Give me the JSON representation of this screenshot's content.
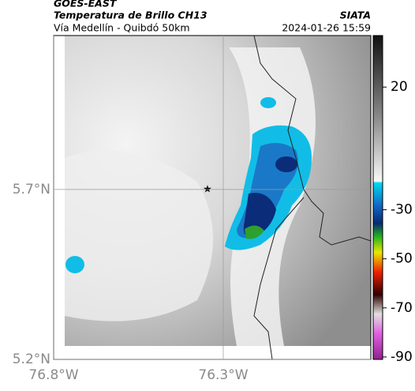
{
  "header": {
    "title": "GOES-EAST",
    "subtitle": "Temperatura de Brillo CH13",
    "location": "Vía Medellín - Quibdó 50km",
    "source": "SIATA",
    "datetime": "2024-01-26 15:59"
  },
  "map": {
    "xlim": [
      -76.8,
      -75.865
    ],
    "ylim": [
      5.2,
      6.153
    ],
    "xticks": [
      {
        "value": -76.8,
        "label": "76.8°W"
      },
      {
        "value": -76.3,
        "label": "76.3°W"
      }
    ],
    "yticks": [
      {
        "value": 5.7,
        "label": "5.7°N"
      },
      {
        "value": 5.2,
        "label": "5.2°N"
      }
    ],
    "colorbar": {
      "lim": [
        -91,
        41
      ],
      "ticks": [
        20,
        -30,
        -50,
        -70,
        -90
      ]
    }
  }
}
